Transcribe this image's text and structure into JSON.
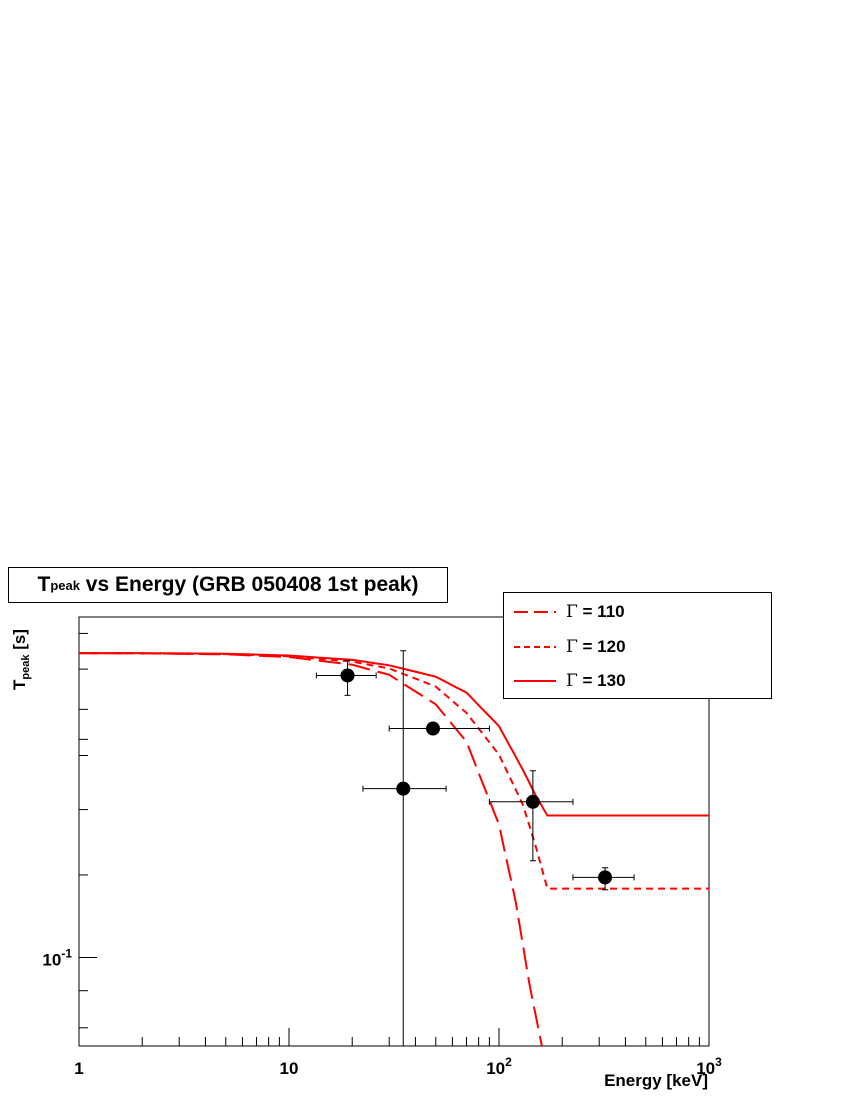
{
  "chart_data": {
    "type": "scatter",
    "title_main": "T",
    "title_sub": "peak",
    "title_rest": " vs Energy (GRB 050408 1st peak)",
    "xlabel": "Energy [keV]",
    "ylabel_main": "T",
    "ylabel_sub": "peak",
    "ylabel_rest": " [s]",
    "x_scale": "log",
    "y_scale": "log",
    "xlim": [
      1,
      1000
    ],
    "ylim": [
      0.0755,
      0.295
    ],
    "x_tick_labels": [
      "1",
      "10",
      "10^2",
      "10^3"
    ],
    "y_tick_labels": [
      "10^-1"
    ],
    "legend_position": "top-right",
    "legend": [
      {
        "greek": "Γ",
        "text": " = 110",
        "style": "long-dash"
      },
      {
        "greek": "Γ",
        "text": " = 120",
        "style": "short-dash"
      },
      {
        "greek": "Γ",
        "text": " = 130",
        "style": "solid"
      }
    ],
    "points": [
      {
        "x": 19.0,
        "y": 0.245,
        "xerr": [
          13.5,
          26.0
        ],
        "yerr": [
          0.23,
          0.257
        ]
      },
      {
        "x": 35.0,
        "y": 0.171,
        "xerr": [
          22.5,
          56.0
        ],
        "yerr": [
          0.074,
          0.265
        ]
      },
      {
        "x": 48.5,
        "y": 0.207,
        "xerr": [
          30.0,
          90.0
        ],
        "yerr": null
      },
      {
        "x": 145.0,
        "y": 0.164,
        "xerr": [
          90.0,
          225.0
        ],
        "yerr": [
          0.136,
          0.181
        ]
      },
      {
        "x": 320.0,
        "y": 0.129,
        "xerr": [
          225.0,
          440.0
        ],
        "yerr": [
          0.124,
          0.133
        ]
      }
    ],
    "series": [
      {
        "name": "Γ = 110",
        "style": "long-dash",
        "color": "#ff0000",
        "x": [
          1,
          2,
          5,
          10,
          20,
          30,
          50,
          70,
          100,
          120,
          140,
          160
        ],
        "y": [
          0.263,
          0.2628,
          0.262,
          0.2598,
          0.2535,
          0.2455,
          0.2235,
          0.1985,
          0.1525,
          0.1195,
          0.0915,
          0.0755
        ]
      },
      {
        "name": "Γ = 120",
        "style": "short-dash",
        "color": "#ff0000",
        "x": [
          1,
          2,
          5,
          10,
          20,
          30,
          50,
          70,
          100,
          130,
          150,
          170,
          1000
        ],
        "y": [
          0.263,
          0.2628,
          0.2622,
          0.2605,
          0.256,
          0.2505,
          0.2365,
          0.2175,
          0.1905,
          0.1625,
          0.142,
          0.1245,
          0.1245
        ]
      },
      {
        "name": "Γ = 130",
        "style": "solid",
        "color": "#ff0000",
        "x": [
          1,
          2,
          5,
          10,
          20,
          30,
          50,
          70,
          100,
          130,
          150,
          170,
          1000
        ],
        "y": [
          0.263,
          0.263,
          0.2625,
          0.261,
          0.2575,
          0.253,
          0.244,
          0.232,
          0.2085,
          0.1815,
          0.167,
          0.157,
          0.157
        ]
      }
    ]
  }
}
